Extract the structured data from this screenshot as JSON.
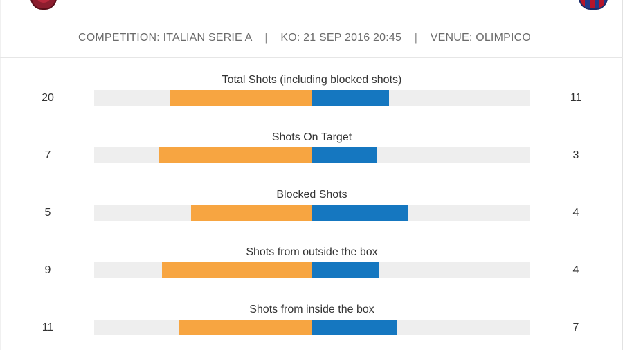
{
  "colors": {
    "home": "#f7a541",
    "away": "#1577c0",
    "track": "#eeeeee"
  },
  "match": {
    "competition_label": "COMPETITION:",
    "competition": "ITALIAN SERIE A",
    "ko_label": "KO:",
    "ko": "21 SEP 2016 20:45",
    "venue_label": "VENUE:",
    "venue": "OLIMPICO",
    "separator": "|"
  },
  "crests": {
    "home": "home-team-crest-icon",
    "away": "away-team-crest-icon"
  },
  "stats": [
    {
      "label": "Total Shots (including blocked shots)",
      "home": "20",
      "away": "11",
      "home_fill": 0.65,
      "away_fill": 0.355
    },
    {
      "label": "Shots On Target",
      "home": "7",
      "away": "3",
      "home_fill": 0.7,
      "away_fill": 0.3
    },
    {
      "label": "Blocked Shots",
      "home": "5",
      "away": "4",
      "home_fill": 0.555,
      "away_fill": 0.445
    },
    {
      "label": "Shots from outside the box",
      "home": "9",
      "away": "4",
      "home_fill": 0.69,
      "away_fill": 0.31
    },
    {
      "label": "Shots from inside the box",
      "home": "11",
      "away": "7",
      "home_fill": 0.61,
      "away_fill": 0.39
    }
  ]
}
